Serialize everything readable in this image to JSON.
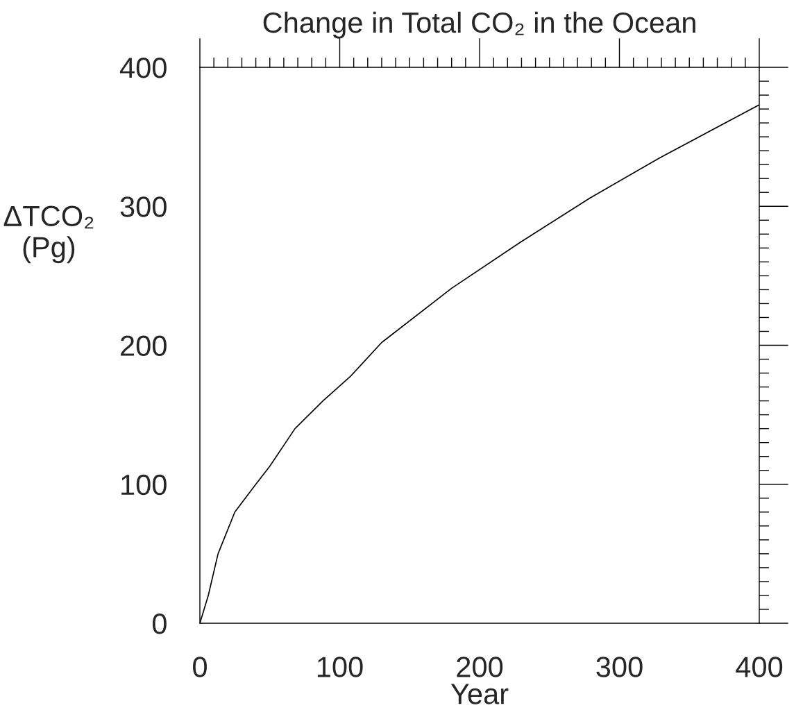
{
  "chart_data": {
    "type": "line",
    "title": "Change in Total CO₂ in the Ocean",
    "xlabel": "Year",
    "ylabel": "ΔTCO₂\n(Pg)",
    "x": [
      0,
      6,
      13,
      25,
      40,
      50,
      68,
      88,
      108,
      130,
      180,
      229,
      279,
      329,
      400
    ],
    "series": [
      {
        "color": "#000000",
        "values": [
          0,
          20,
          50,
          80,
          100,
          113,
          140,
          160,
          178,
          202,
          241,
          274,
          306,
          335,
          373
        ]
      }
    ],
    "xlim": [
      0,
      400
    ],
    "ylim": [
      0,
      400
    ],
    "xticks": [
      0,
      {
        "value": 10,
        "label": null
      },
      {
        "value": 20,
        "label": null
      },
      {
        "value": 30,
        "label": null
      },
      {
        "value": 40,
        "label": null
      },
      {
        "value": 50,
        "label": null
      },
      {
        "value": 60,
        "label": null
      },
      {
        "value": 70,
        "label": null
      },
      {
        "value": 80,
        "label": null
      },
      {
        "value": 90,
        "label": null
      },
      100,
      {
        "value": 110,
        "label": null
      },
      {
        "value": 120,
        "label": null
      },
      {
        "value": 130,
        "label": null
      },
      {
        "value": 140,
        "label": null
      },
      {
        "value": 150,
        "label": null
      },
      {
        "value": 160,
        "label": null
      },
      {
        "value": 170,
        "label": null
      },
      {
        "value": 180,
        "label": null
      },
      {
        "value": 190,
        "label": null
      },
      200,
      {
        "value": 210,
        "label": null
      },
      {
        "value": 220,
        "label": null
      },
      {
        "value": 230,
        "label": null
      },
      {
        "value": 240,
        "label": null
      },
      {
        "value": 250,
        "label": null
      },
      {
        "value": 260,
        "label": null
      },
      {
        "value": 270,
        "label": null
      },
      {
        "value": 280,
        "label": null
      },
      {
        "value": 290,
        "label": null
      },
      300,
      {
        "value": 310,
        "label": null
      },
      {
        "value": 320,
        "label": null
      },
      {
        "value": 330,
        "label": null
      },
      {
        "value": 340,
        "label": null
      },
      {
        "value": 350,
        "label": null
      },
      {
        "value": 360,
        "label": null
      },
      {
        "value": 370,
        "label": null
      },
      {
        "value": 380,
        "label": null
      },
      {
        "value": 390,
        "label": null
      },
      400
    ],
    "yticks": [
      0,
      {
        "value": 10,
        "label": null
      },
      {
        "value": 20,
        "label": null
      },
      {
        "value": 30,
        "label": null
      },
      {
        "value": 40,
        "label": null
      },
      {
        "value": 50,
        "label": null
      },
      {
        "value": 60,
        "label": null
      },
      {
        "value": 70,
        "label": null
      },
      {
        "value": 80,
        "label": null
      },
      {
        "value": 90,
        "label": null
      },
      100,
      {
        "value": 110,
        "label": null
      },
      {
        "value": 120,
        "label": null
      },
      {
        "value": 130,
        "label": null
      },
      {
        "value": 140,
        "label": null
      },
      {
        "value": 150,
        "label": null
      },
      {
        "value": 160,
        "label": null
      },
      {
        "value": 170,
        "label": null
      },
      {
        "value": 180,
        "label": null
      },
      {
        "value": 190,
        "label": null
      },
      200,
      {
        "value": 210,
        "label": null
      },
      {
        "value": 220,
        "label": null
      },
      {
        "value": 230,
        "label": null
      },
      {
        "value": 240,
        "label": null
      },
      {
        "value": 250,
        "label": null
      },
      {
        "value": 260,
        "label": null
      },
      {
        "value": 270,
        "label": null
      },
      {
        "value": 280,
        "label": null
      },
      {
        "value": 290,
        "label": null
      },
      300,
      {
        "value": 310,
        "label": null
      },
      {
        "value": 320,
        "label": null
      },
      {
        "value": 330,
        "label": null
      },
      {
        "value": 340,
        "label": null
      },
      {
        "value": 350,
        "label": null
      },
      {
        "value": 360,
        "label": null
      },
      {
        "value": 370,
        "label": null
      },
      {
        "value": 380,
        "label": null
      },
      {
        "value": 390,
        "label": null
      },
      400
    ],
    "grid": false,
    "legend": false,
    "marker": "none",
    "line_style": "solid"
  }
}
